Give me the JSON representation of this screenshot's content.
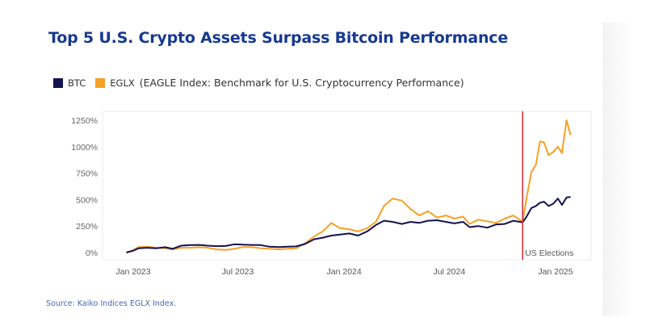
{
  "page": {
    "title": "Top 5 U.S. Crypto Assets Surpass Bitcoin Performance",
    "source": "Source: Kaiko Indices EGLX Index."
  },
  "legend": {
    "items": [
      {
        "label": "BTC",
        "color": "#14134f"
      },
      {
        "label": "EGLX",
        "color": "#f7a024"
      }
    ],
    "description": "(EAGLE Index: Benchmark for U.S. Cryptocurrency Performance)"
  },
  "chart_data": {
    "type": "line",
    "title": "Top 5 U.S. Crypto Assets Surpass Bitcoin Performance",
    "xlabel": "",
    "ylabel": "",
    "ylim": [
      -50,
      1300
    ],
    "y_ticks": [
      0,
      250,
      500,
      750,
      1000,
      1250
    ],
    "y_tick_labels": [
      "0%",
      "250%",
      "500%",
      "750%",
      "1000%",
      "1250%"
    ],
    "x_ticks": [
      "2023-01-01",
      "2023-07-01",
      "2024-01-01",
      "2024-07-01",
      "2025-01-01"
    ],
    "x_tick_labels": [
      "Jan 2023",
      "Jul 2023",
      "Jan 2024",
      "Jul 2024",
      "Jan 2025"
    ],
    "x_range": [
      "2022-11-15",
      "2025-02-15"
    ],
    "grid": false,
    "legend_position": "top-left",
    "annotations": [
      {
        "type": "vline",
        "x": "2024-11-05",
        "label": "US Elections",
        "color": "#d9343a"
      }
    ],
    "x": [
      "2022-12-20",
      "2022-12-31",
      "2023-01-10",
      "2023-01-25",
      "2023-02-10",
      "2023-02-25",
      "2023-03-10",
      "2023-03-25",
      "2023-04-10",
      "2023-04-25",
      "2023-05-10",
      "2023-05-25",
      "2023-06-10",
      "2023-06-25",
      "2023-07-10",
      "2023-07-25",
      "2023-08-10",
      "2023-08-25",
      "2023-09-10",
      "2023-09-25",
      "2023-10-10",
      "2023-10-25",
      "2023-11-10",
      "2023-11-25",
      "2023-12-10",
      "2023-12-25",
      "2024-01-10",
      "2024-01-25",
      "2024-02-10",
      "2024-02-25",
      "2024-03-10",
      "2024-03-25",
      "2024-04-10",
      "2024-04-25",
      "2024-05-10",
      "2024-05-25",
      "2024-06-10",
      "2024-06-25",
      "2024-07-10",
      "2024-07-25",
      "2024-08-05",
      "2024-08-20",
      "2024-09-05",
      "2024-09-20",
      "2024-10-05",
      "2024-10-20",
      "2024-11-05",
      "2024-11-12",
      "2024-11-20",
      "2024-11-28",
      "2024-12-05",
      "2024-12-12",
      "2024-12-20",
      "2024-12-28",
      "2025-01-05",
      "2025-01-12",
      "2025-01-20",
      "2025-01-27"
    ],
    "series": [
      {
        "name": "BTC",
        "color": "#14134f",
        "values": [
          0,
          15,
          40,
          45,
          40,
          50,
          35,
          65,
          70,
          72,
          65,
          60,
          62,
          78,
          75,
          72,
          70,
          55,
          52,
          55,
          58,
          80,
          125,
          140,
          160,
          170,
          180,
          160,
          200,
          260,
          300,
          290,
          270,
          290,
          280,
          300,
          305,
          290,
          275,
          290,
          240,
          250,
          235,
          265,
          270,
          300,
          285,
          340,
          420,
          440,
          470,
          480,
          440,
          460,
          510,
          450,
          520,
          525
        ]
      },
      {
        "name": "EGLX",
        "color": "#f7a024",
        "values": [
          0,
          20,
          50,
          55,
          45,
          40,
          30,
          45,
          45,
          50,
          45,
          30,
          25,
          35,
          52,
          50,
          40,
          35,
          30,
          35,
          40,
          85,
          150,
          200,
          280,
          230,
          220,
          200,
          230,
          290,
          440,
          510,
          490,
          410,
          350,
          390,
          330,
          350,
          320,
          340,
          270,
          310,
          295,
          280,
          320,
          350,
          290,
          520,
          760,
          830,
          1050,
          1040,
          920,
          950,
          1000,
          940,
          1250,
          1110
        ]
      }
    ]
  }
}
